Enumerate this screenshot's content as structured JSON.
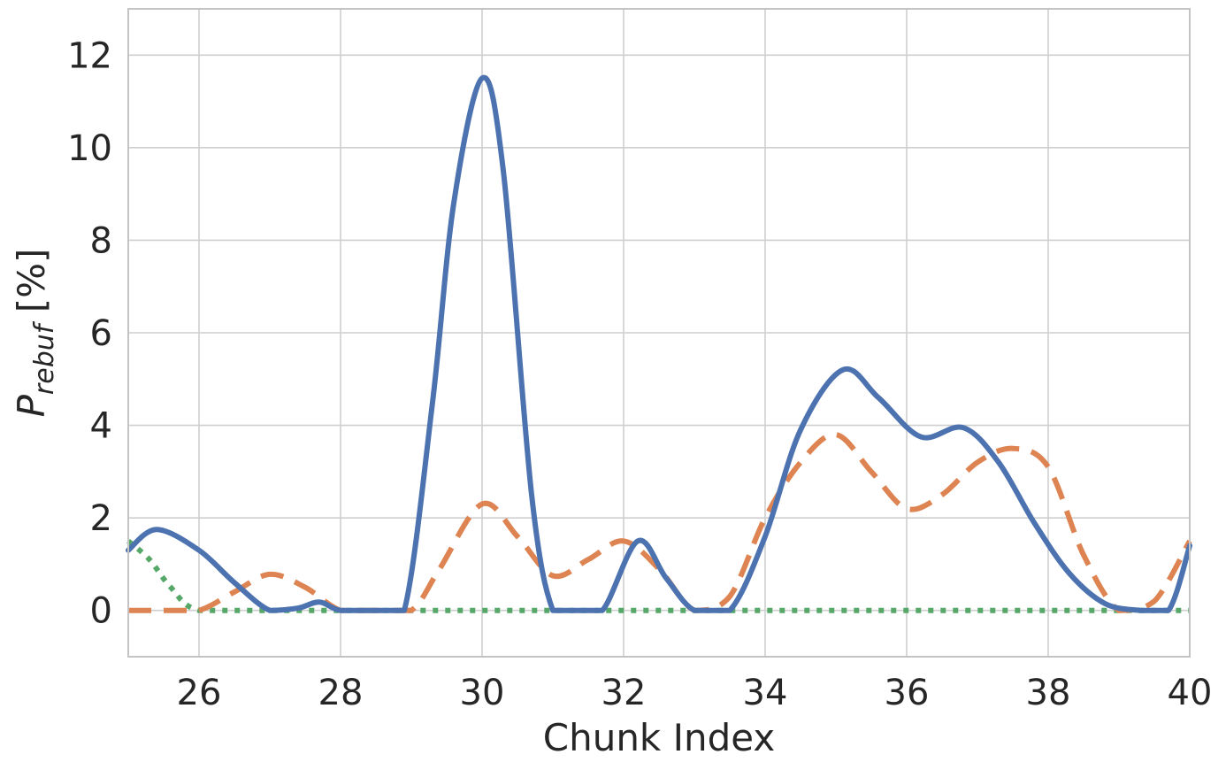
{
  "chart_data": {
    "type": "line",
    "title": "",
    "xlabel": "Chunk Index",
    "ylabel": {
      "main": "P",
      "subscript": "rebuf",
      "unit": " [%]"
    },
    "xlim": [
      25,
      40
    ],
    "ylim": [
      -1,
      13
    ],
    "xticks": [
      26,
      28,
      30,
      32,
      34,
      36,
      38,
      40
    ],
    "yticks": [
      0,
      2,
      4,
      6,
      8,
      10,
      12
    ],
    "grid": true,
    "legend": "none",
    "series": [
      {
        "style": "solid",
        "color": "#4c72b0",
        "x": [
          25,
          25.4,
          26,
          26.5,
          27,
          27.4,
          27.7,
          28,
          28.5,
          28.9,
          29.3,
          29.6,
          30,
          30.3,
          30.7,
          31,
          31.3,
          31.7,
          32.2,
          32.6,
          33,
          33.5,
          34,
          34.5,
          35.1,
          35.6,
          36.2,
          36.8,
          37.3,
          37.8,
          38.3,
          38.8,
          39.3,
          39.7,
          40
        ],
        "y": [
          1.3,
          1.75,
          1.3,
          0.6,
          0.0,
          0.05,
          0.18,
          0.0,
          0.0,
          0.0,
          4.5,
          8.8,
          11.5,
          9.5,
          2.5,
          0.0,
          0.0,
          0.0,
          1.5,
          0.7,
          0.0,
          0.0,
          1.6,
          3.9,
          5.2,
          4.6,
          3.75,
          3.95,
          3.2,
          1.9,
          0.8,
          0.15,
          0.0,
          0.0,
          1.4
        ]
      },
      {
        "style": "dashed",
        "color": "#dd8452",
        "x": [
          25,
          25.5,
          26,
          26.5,
          27,
          27.5,
          28,
          28.5,
          29,
          29.4,
          30,
          30.5,
          31,
          31.5,
          32,
          32.5,
          33,
          33.5,
          34,
          34.5,
          35,
          35.5,
          36,
          36.5,
          37,
          37.5,
          38,
          38.5,
          39,
          39.5,
          40
        ],
        "y": [
          0.0,
          0.0,
          0.0,
          0.4,
          0.78,
          0.5,
          0.0,
          0.0,
          0.0,
          0.9,
          2.3,
          1.6,
          0.75,
          1.1,
          1.5,
          0.9,
          0.0,
          0.3,
          2.0,
          3.2,
          3.8,
          3.0,
          2.2,
          2.5,
          3.2,
          3.5,
          3.1,
          1.2,
          0.0,
          0.2,
          1.5
        ]
      },
      {
        "style": "dotted",
        "color": "#55a868",
        "x": [
          25,
          25.3,
          25.6,
          26,
          27,
          28,
          29,
          30,
          31,
          32,
          33,
          34,
          35,
          36,
          37,
          38,
          39,
          40
        ],
        "y": [
          1.5,
          1.1,
          0.5,
          0.0,
          0.0,
          0.0,
          0.0,
          0.0,
          0.0,
          0.0,
          0.0,
          0.0,
          0.0,
          0.0,
          0.0,
          0.0,
          0.0,
          0.0
        ]
      }
    ]
  }
}
